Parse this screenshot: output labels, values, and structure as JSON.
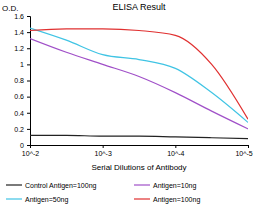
{
  "chart_data": {
    "type": "line",
    "title": "ELISA Result",
    "y_label": "O.D.",
    "x_label": "Serial Dilutions of Antibody",
    "log": "x",
    "grid": false,
    "legend": "bottom",
    "x": [
      0.01,
      0.003162,
      0.001,
      0.0003162,
      0.0001,
      3.162e-05,
      1e-05
    ],
    "xlim": [
      0.01,
      1e-05
    ],
    "xticks": [
      {
        "value": 0.01,
        "label": "10^-2"
      },
      {
        "value": 0.001,
        "label": "10^-3"
      },
      {
        "value": 0.0001,
        "label": "10^-4"
      },
      {
        "value": 1e-05,
        "label": "10^-5"
      }
    ],
    "ylim": [
      0,
      1.6
    ],
    "yticks": [
      0,
      0.2,
      0.4,
      0.6,
      0.8,
      1,
      1.2,
      1.4,
      1.6
    ],
    "series": [
      {
        "name": "Control Antigen=100ng",
        "color": "#222222",
        "values": [
          0.12,
          0.12,
          0.11,
          0.11,
          0.1,
          0.09,
          0.08
        ]
      },
      {
        "name": "Antigen=10ng",
        "color": "#a050c8",
        "values": [
          1.32,
          1.15,
          1.0,
          0.85,
          0.65,
          0.42,
          0.2
        ]
      },
      {
        "name": "Antigen=50ng",
        "color": "#40c4e4",
        "values": [
          1.45,
          1.3,
          1.12,
          1.06,
          0.95,
          0.65,
          0.28
        ]
      },
      {
        "name": "Antigen=100ng",
        "color": "#e03030",
        "values": [
          1.42,
          1.44,
          1.44,
          1.42,
          1.36,
          1.0,
          0.32
        ]
      }
    ]
  }
}
